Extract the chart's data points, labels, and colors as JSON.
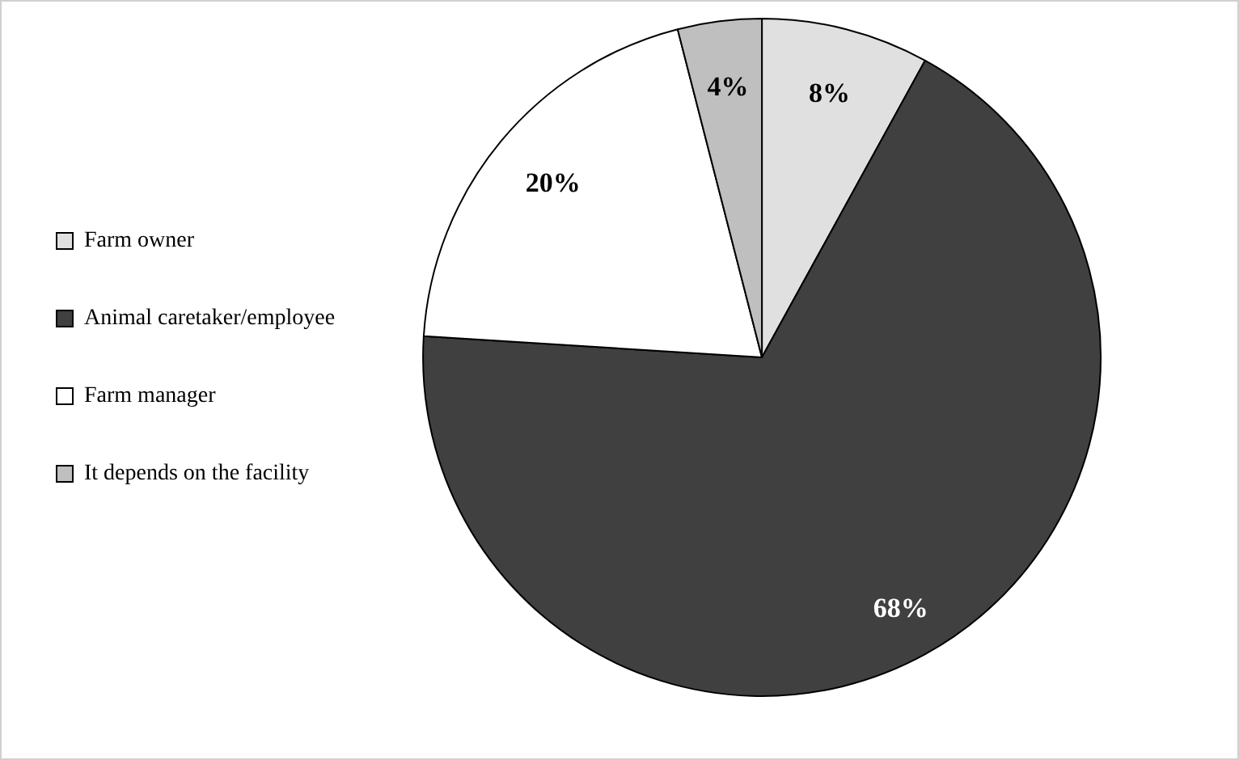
{
  "chart_data": {
    "type": "pie",
    "categories": [
      "Farm owner",
      "Animal caretaker/employee",
      "Farm manager",
      "It depends on the facility"
    ],
    "values": [
      8,
      68,
      20,
      4
    ],
    "colors": [
      "#e0e0e0",
      "#404040",
      "#ffffff",
      "#bfbfbf"
    ],
    "value_labels": [
      "8%",
      "68%",
      "20%",
      "4%"
    ],
    "legend": "left"
  }
}
